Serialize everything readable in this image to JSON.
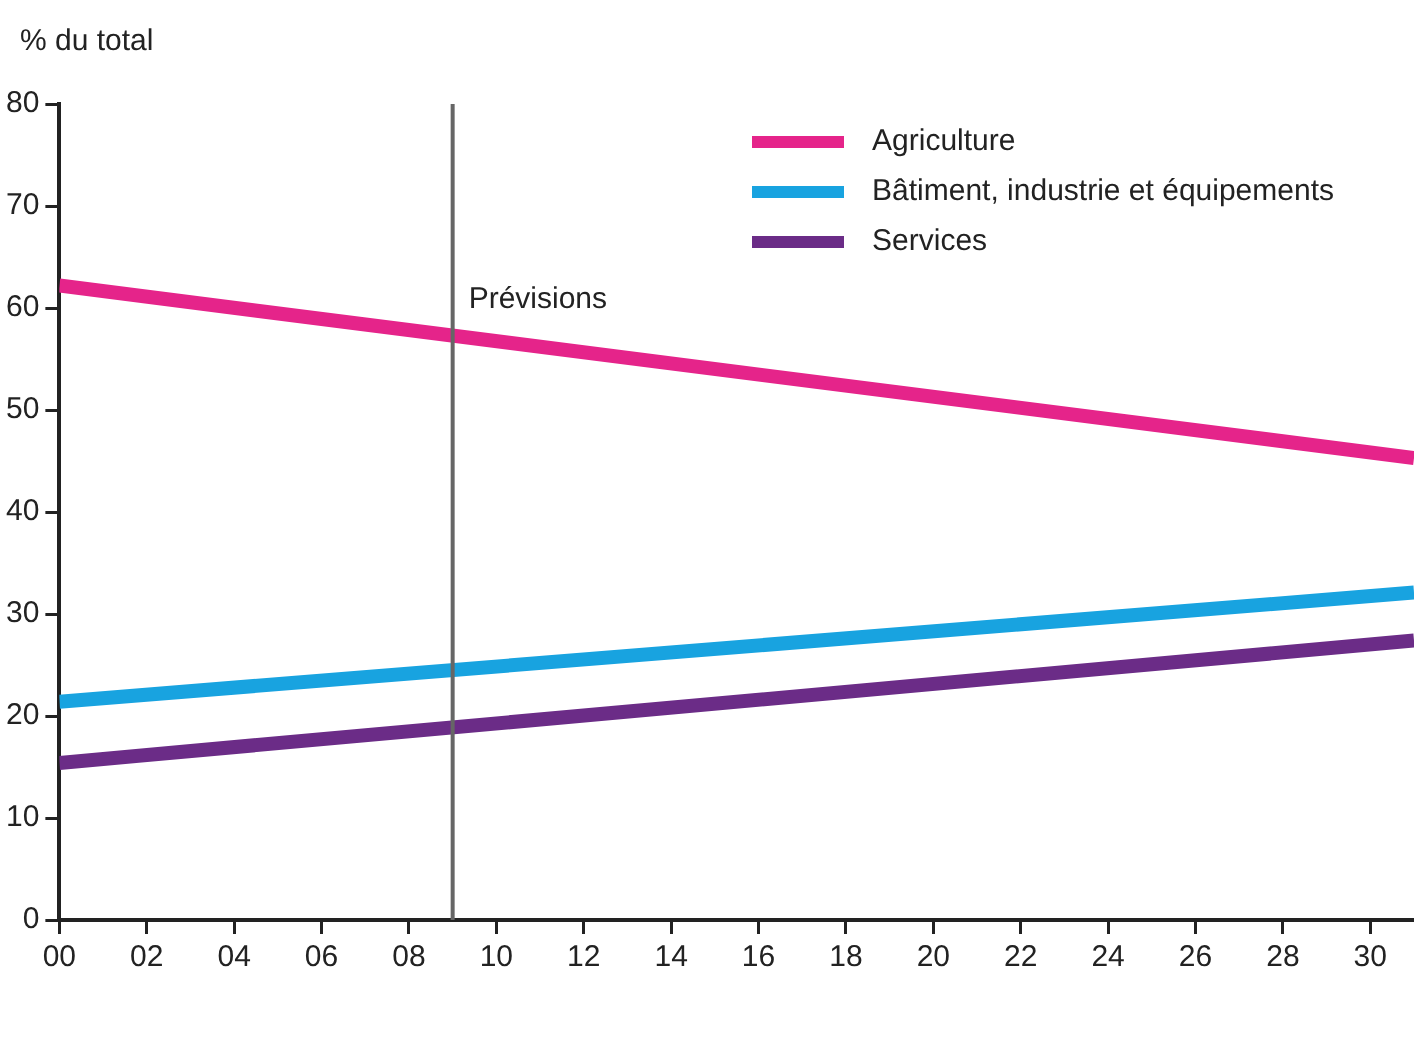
{
  "chart_data": {
    "type": "line",
    "ylabel": "% du total",
    "x": [
      2000,
      2031
    ],
    "series": [
      {
        "name": "Agriculture",
        "color": "#e5248a",
        "values": [
          62.2,
          45.3
        ]
      },
      {
        "name": "Bâtiment, industrie et équipements",
        "color": "#18a3e0",
        "values": [
          21.4,
          32.1
        ]
      },
      {
        "name": "Services",
        "color": "#6b2c87",
        "values": [
          15.4,
          27.4
        ]
      }
    ],
    "xlim": [
      2000,
      2031
    ],
    "xticks": [
      {
        "value": 2000,
        "label": "00"
      },
      {
        "value": 2002,
        "label": "02"
      },
      {
        "value": 2004,
        "label": "04"
      },
      {
        "value": 2006,
        "label": "06"
      },
      {
        "value": 2008,
        "label": "08"
      },
      {
        "value": 2010,
        "label": "10"
      },
      {
        "value": 2012,
        "label": "12"
      },
      {
        "value": 2014,
        "label": "14"
      },
      {
        "value": 2016,
        "label": "16"
      },
      {
        "value": 2018,
        "label": "18"
      },
      {
        "value": 2020,
        "label": "20"
      },
      {
        "value": 2022,
        "label": "22"
      },
      {
        "value": 2024,
        "label": "24"
      },
      {
        "value": 2026,
        "label": "26"
      },
      {
        "value": 2028,
        "label": "28"
      },
      {
        "value": 2030,
        "label": "30"
      }
    ],
    "ylim": [
      0,
      80
    ],
    "yticks": [
      0,
      10,
      20,
      30,
      40,
      50,
      60,
      70,
      80
    ],
    "ref_lines": [
      {
        "axis": "x",
        "value": 2009,
        "label": "Prévisions",
        "color": "#666666"
      }
    ],
    "grid": false,
    "legend": "top right",
    "marker": "none",
    "line_style": "solid"
  }
}
